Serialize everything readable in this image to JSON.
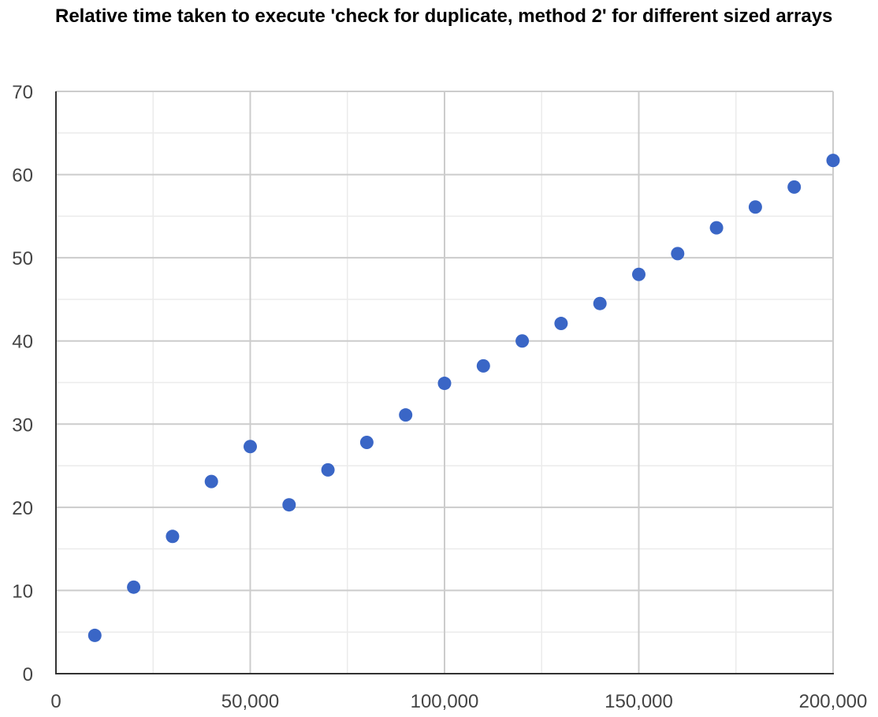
{
  "chart_data": {
    "type": "scatter",
    "title": "Relative time taken to execute 'check for duplicate, method 2' for different sized arrays",
    "xlabel": "",
    "ylabel": "",
    "xlim": [
      0,
      200000
    ],
    "ylim": [
      0,
      70
    ],
    "x_ticks": [
      {
        "value": 0,
        "label": "0"
      },
      {
        "value": 50000,
        "label": "50,000"
      },
      {
        "value": 100000,
        "label": "100,000"
      },
      {
        "value": 150000,
        "label": "150,000"
      },
      {
        "value": 200000,
        "label": "200,000"
      }
    ],
    "x_minor_gridlines": [
      25000,
      75000,
      125000,
      175000
    ],
    "y_ticks": [
      {
        "value": 0,
        "label": "0"
      },
      {
        "value": 10,
        "label": "10"
      },
      {
        "value": 20,
        "label": "20"
      },
      {
        "value": 30,
        "label": "30"
      },
      {
        "value": 40,
        "label": "40"
      },
      {
        "value": 50,
        "label": "50"
      },
      {
        "value": 60,
        "label": "60"
      },
      {
        "value": 70,
        "label": "70"
      }
    ],
    "y_minor_gridlines": [
      5,
      15,
      25,
      35,
      45,
      55,
      65
    ],
    "grid": true,
    "legend": "none",
    "colors": {
      "point": "#3a66c6",
      "major_grid": "#cccccc",
      "minor_grid": "#ebebeb",
      "axis": "#333333"
    },
    "series": [
      {
        "points": [
          {
            "x": 10000,
            "y": 4.6
          },
          {
            "x": 20000,
            "y": 10.4
          },
          {
            "x": 30000,
            "y": 16.5
          },
          {
            "x": 40000,
            "y": 23.1
          },
          {
            "x": 50000,
            "y": 27.3
          },
          {
            "x": 60000,
            "y": 20.3
          },
          {
            "x": 70000,
            "y": 24.5
          },
          {
            "x": 80000,
            "y": 27.8
          },
          {
            "x": 90000,
            "y": 31.1
          },
          {
            "x": 100000,
            "y": 34.9
          },
          {
            "x": 110000,
            "y": 37.0
          },
          {
            "x": 120000,
            "y": 40.0
          },
          {
            "x": 130000,
            "y": 42.1
          },
          {
            "x": 140000,
            "y": 44.5
          },
          {
            "x": 150000,
            "y": 48.0
          },
          {
            "x": 160000,
            "y": 50.5
          },
          {
            "x": 170000,
            "y": 53.6
          },
          {
            "x": 180000,
            "y": 56.1
          },
          {
            "x": 190000,
            "y": 58.5
          },
          {
            "x": 200000,
            "y": 61.7
          }
        ]
      }
    ]
  }
}
